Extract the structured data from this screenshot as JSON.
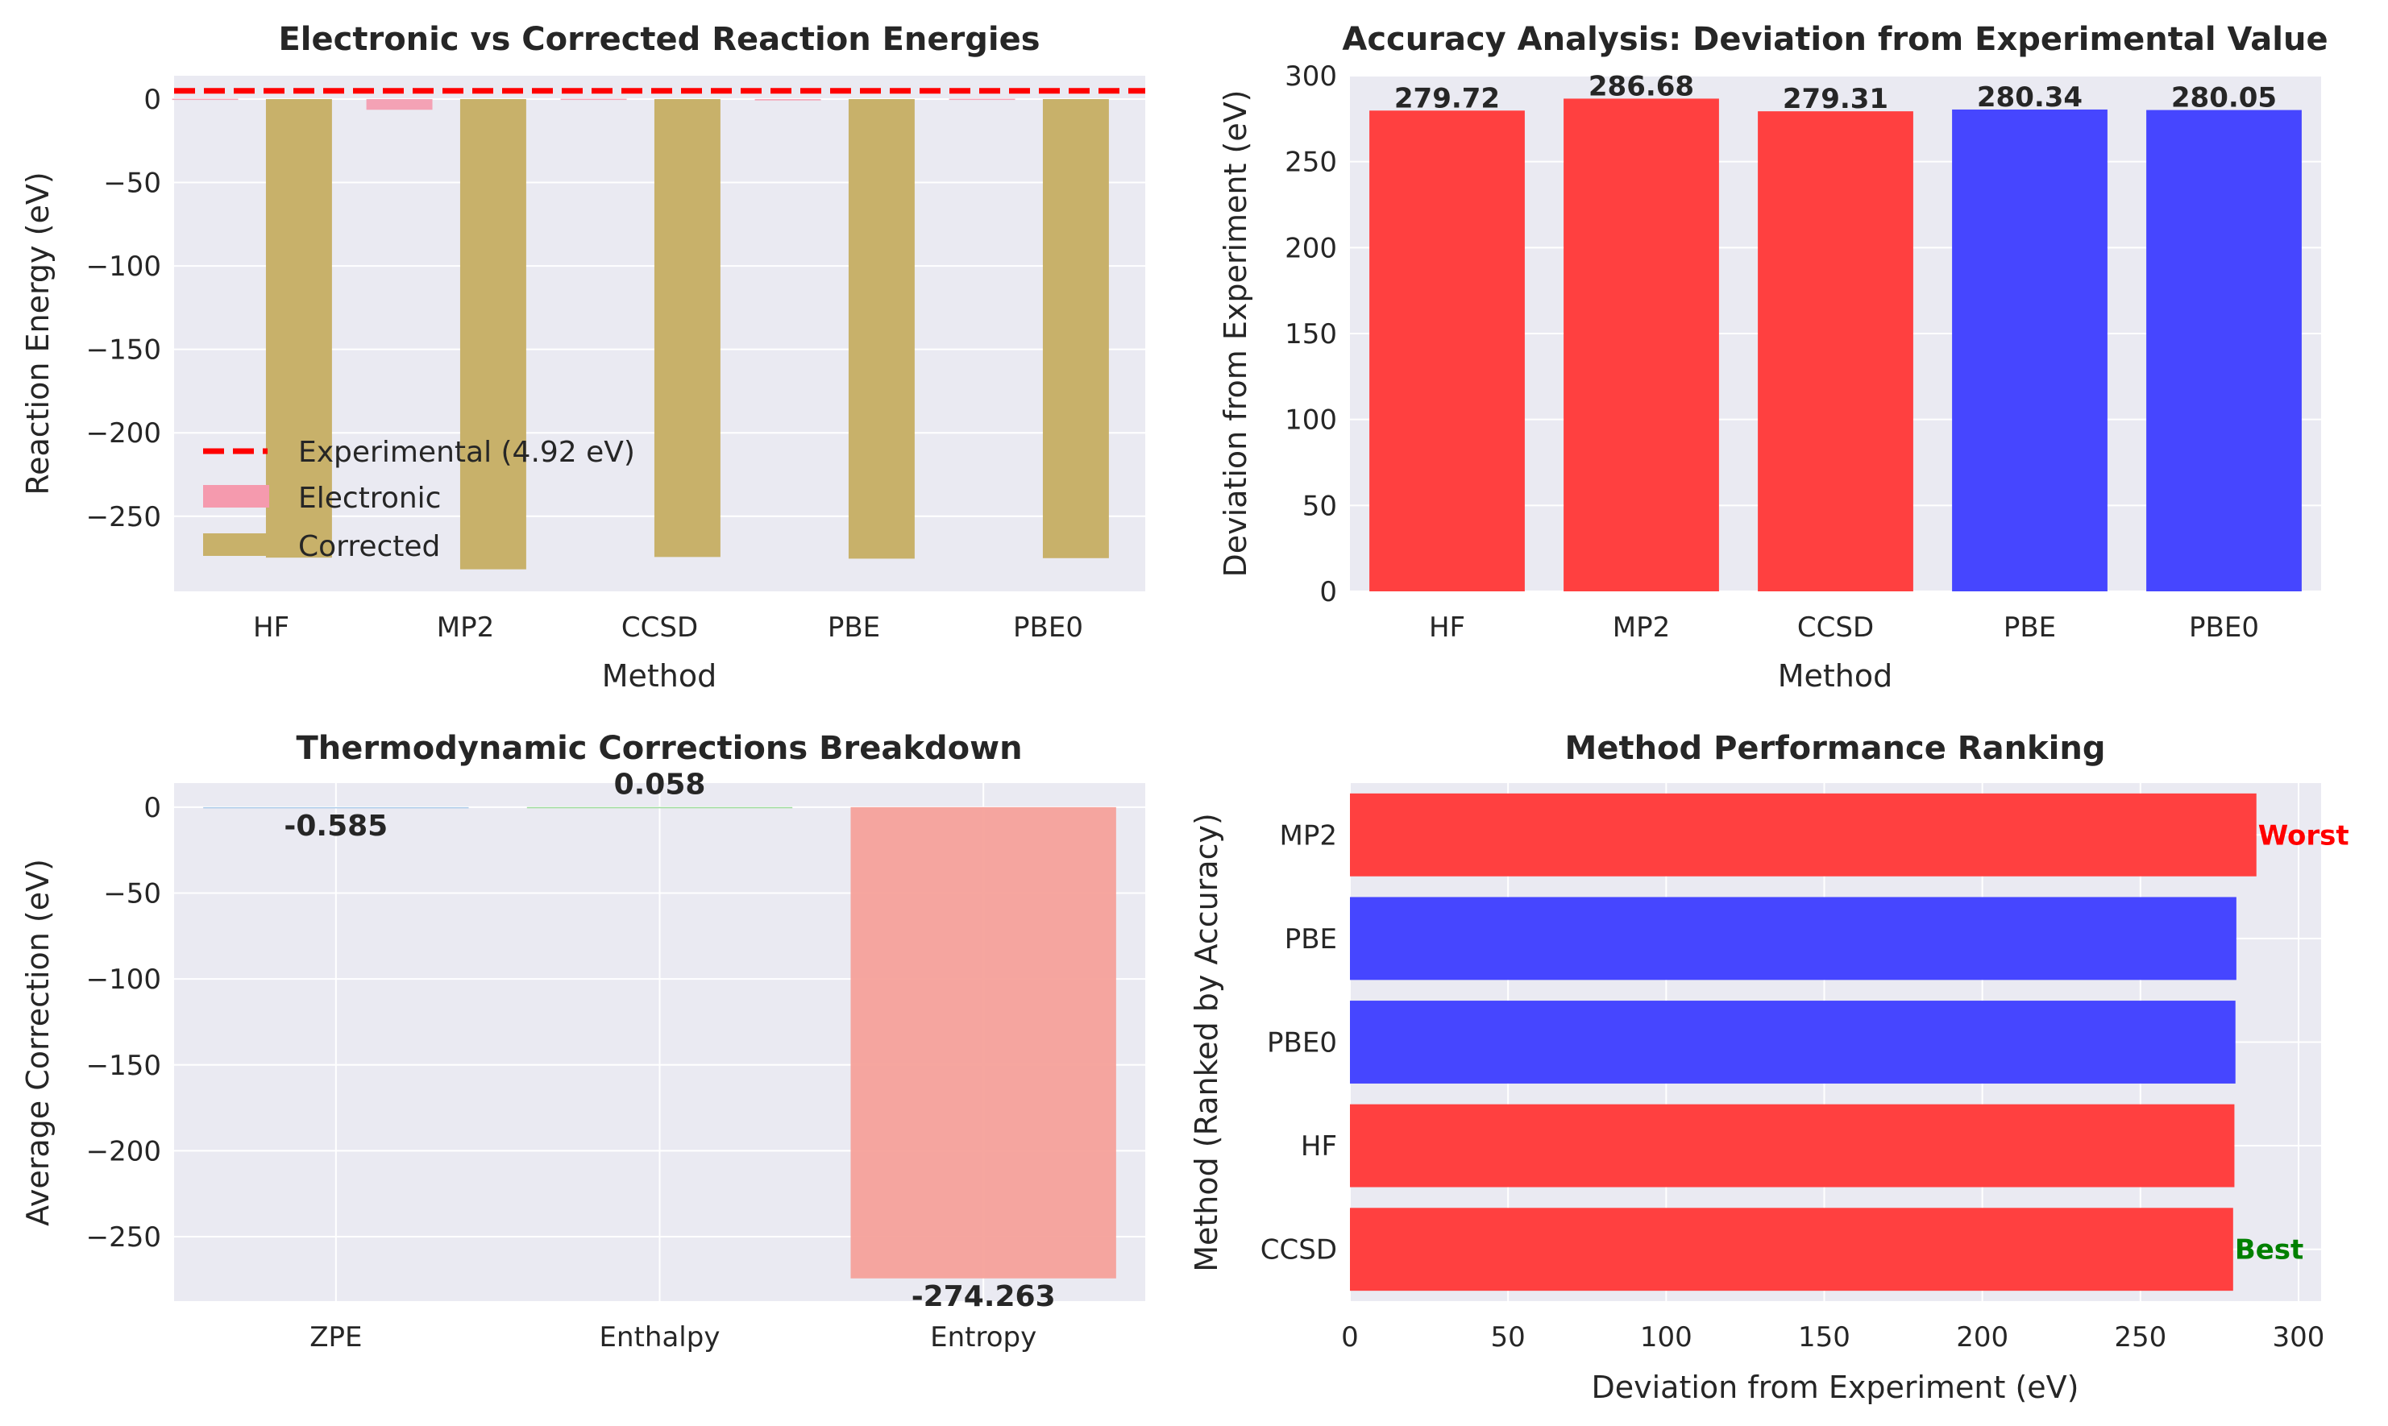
{
  "colors": {
    "panel_bg": "#EAEAF2",
    "grid": "#FFFFFF",
    "text": "#262626",
    "electronic": "#F59AAE",
    "corrected": "#C8B16A",
    "experimental_line": "#FF0000",
    "ab_initio": "#FF4040",
    "dft": "#4646FF",
    "salmon": "#F6A19A",
    "zpe": "#A8C8E8",
    "best": "#008000",
    "worst": "#FF0000"
  },
  "chart_data": [
    {
      "id": "p1",
      "type": "bar",
      "title": "Electronic vs Corrected Reaction Energies",
      "xlabel": "Method",
      "ylabel": "Reaction Energy (eV)",
      "categories": [
        "HF",
        "MP2",
        "CCSD",
        "PBE",
        "PBE0"
      ],
      "ylim": [
        -295,
        14
      ],
      "yticks": [
        0,
        -50,
        -100,
        -150,
        -200,
        -250
      ],
      "ytick_labels": [
        "0",
        "−50",
        "−100",
        "−150",
        "−200",
        "−250"
      ],
      "series": [
        {
          "name": "Electronic",
          "values": [
            0.2,
            -6.4,
            0.2,
            -0.8,
            0.2
          ]
        },
        {
          "name": "Corrected",
          "values": [
            -274.8,
            -281.8,
            -274.4,
            -275.4,
            -275.1
          ]
        }
      ],
      "reference_line": {
        "name": "Experimental (4.92 eV)",
        "value": 4.92
      },
      "legend": "lower-left",
      "grid": true
    },
    {
      "id": "p2",
      "type": "bar",
      "title": "Accuracy Analysis: Deviation from Experimental Value",
      "xlabel": "Method",
      "ylabel": "Deviation from Experiment (eV)",
      "categories": [
        "HF",
        "MP2",
        "CCSD",
        "PBE",
        "PBE0"
      ],
      "values": [
        279.72,
        286.68,
        279.31,
        280.34,
        280.05
      ],
      "data_labels": [
        "279.72",
        "286.68",
        "279.31",
        "280.34",
        "280.05"
      ],
      "bar_colors": [
        "#FF4040",
        "#FF4040",
        "#FF4040",
        "#4646FF",
        "#4646FF"
      ],
      "ylim": [
        0,
        300
      ],
      "yticks": [
        0,
        50,
        100,
        150,
        200,
        250,
        300
      ],
      "ytick_labels": [
        "0",
        "50",
        "100",
        "150",
        "200",
        "250",
        "300"
      ],
      "grid": true
    },
    {
      "id": "p3",
      "type": "bar",
      "title": "Thermodynamic Corrections Breakdown",
      "xlabel": "",
      "ylabel": "Average Correction (eV)",
      "categories": [
        "ZPE",
        "Enthalpy",
        "Entropy"
      ],
      "values": [
        -0.585,
        0.058,
        -274.263
      ],
      "data_labels": [
        "-0.585",
        "0.058",
        "-274.263"
      ],
      "bar_colors": [
        "#A8C8E8",
        "#98D898",
        "#F6A19A"
      ],
      "ylim": [
        -287.5,
        14
      ],
      "yticks": [
        0,
        -50,
        -100,
        -150,
        -200,
        -250
      ],
      "ytick_labels": [
        "0",
        "−50",
        "−100",
        "−150",
        "−200",
        "−250"
      ],
      "grid": true
    },
    {
      "id": "p4",
      "type": "bar",
      "orientation": "horizontal",
      "title": "Method Performance Ranking",
      "xlabel": "Deviation from Experiment (eV)",
      "ylabel": "Method (Ranked by Accuracy)",
      "categories": [
        "MP2",
        "PBE",
        "PBE0",
        "HF",
        "CCSD"
      ],
      "values": [
        286.68,
        280.34,
        280.05,
        279.72,
        279.31
      ],
      "bar_colors": [
        "#FF4040",
        "#4646FF",
        "#4646FF",
        "#FF4040",
        "#FF4040"
      ],
      "annotations": {
        "worst": "Worst",
        "best": "Best"
      },
      "xlim": [
        0,
        300
      ],
      "xticks": [
        0,
        50,
        100,
        150,
        200,
        250,
        300
      ],
      "xtick_labels": [
        "0",
        "50",
        "100",
        "150",
        "200",
        "250",
        "300"
      ],
      "grid": true
    }
  ]
}
